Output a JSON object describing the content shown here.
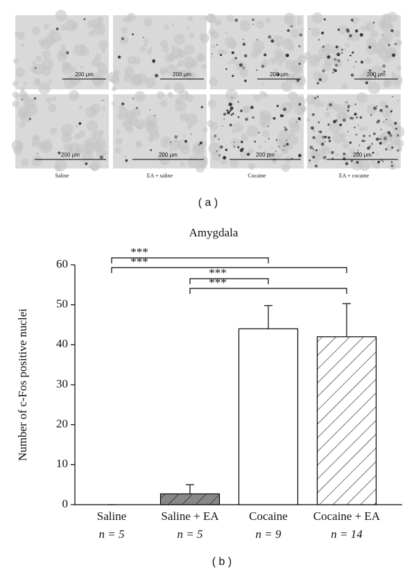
{
  "panel_a": {
    "label": "( a )",
    "scale_bar": "200 μm",
    "columns": [
      "Saline",
      "EA + saline",
      "Cocaine",
      "EA + cocaine"
    ]
  },
  "chart_data": {
    "type": "bar",
    "title": "Amygdala",
    "panel_label": "( b )",
    "ylabel": "Number of c-Fos positive nuclei",
    "categories": [
      "Saline",
      "Saline + EA",
      "Cocaine",
      "Cocaine + EA"
    ],
    "sample_sizes": [
      "n = 5",
      "n = 5",
      "n = 9",
      "n = 14"
    ],
    "values": [
      0,
      2.7,
      44,
      42
    ],
    "errors": [
      0,
      2.3,
      5.8,
      8.3
    ],
    "colors": [
      "#ffffff",
      "#888888",
      "#ffffff",
      "#ffffff"
    ],
    "hatch": [
      false,
      true,
      false,
      true
    ],
    "ylim": [
      0,
      60
    ],
    "yticks": [
      0,
      10,
      20,
      30,
      40,
      50,
      60
    ],
    "significance": [
      {
        "pair": [
          "Saline",
          "Cocaine"
        ],
        "label": "***"
      },
      {
        "pair": [
          "Saline",
          "Cocaine + EA"
        ],
        "label": "***"
      },
      {
        "pair": [
          "Saline + EA",
          "Cocaine"
        ],
        "label": "***"
      },
      {
        "pair": [
          "Saline + EA",
          "Cocaine + EA"
        ],
        "label": "***"
      }
    ]
  }
}
